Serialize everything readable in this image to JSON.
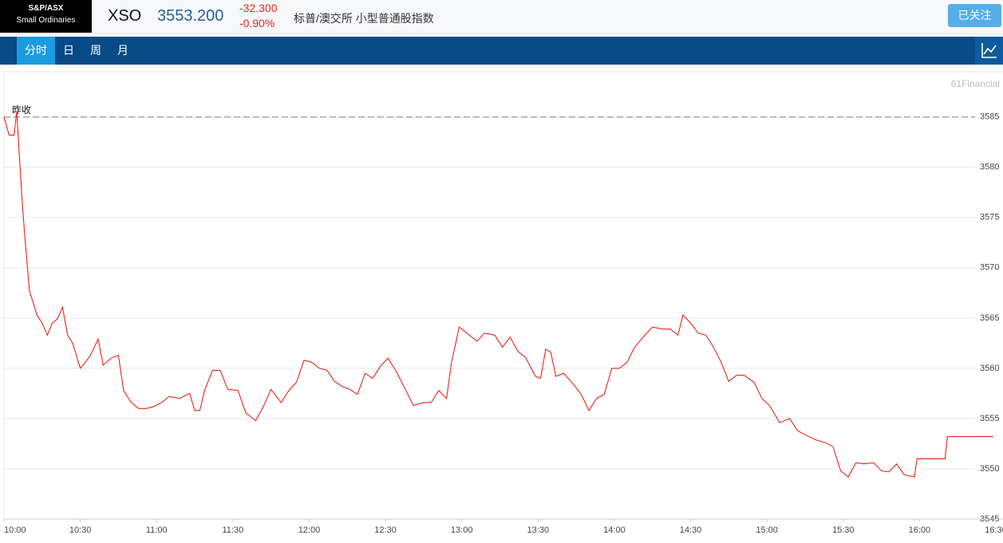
{
  "header": {
    "logo_line1": "S&P/ASX",
    "logo_line2": "Small Ordinaries",
    "symbol": "XSO",
    "price": "3553.200",
    "change": "-32.300",
    "change_pct": "-0.90%",
    "name": "标普/澳交所 小型普通股指数",
    "follow_button": "已关注"
  },
  "tabs": [
    "分时",
    "日",
    "周",
    "月"
  ],
  "chart_data": {
    "type": "line",
    "watermark": "61Financial",
    "color": "#e0261b",
    "reference_line": {
      "label": "昨收",
      "value": 3585
    },
    "x": [
      "10:00",
      "10:02",
      "10:04",
      "10:05",
      "10:07",
      "10:08",
      "10:10",
      "10:13",
      "10:15",
      "10:17",
      "10:19",
      "10:21",
      "10:23",
      "10:25",
      "10:27",
      "10:30",
      "10:32",
      "10:34",
      "10:37",
      "10:39",
      "10:42",
      "10:45",
      "10:47",
      "10:50",
      "10:53",
      "10:56",
      "10:59",
      "11:02",
      "11:05",
      "11:09",
      "11:13",
      "11:15",
      "11:17",
      "11:19",
      "11:22",
      "11:25",
      "11:28",
      "11:32",
      "11:35",
      "11:39",
      "11:42",
      "11:45",
      "11:49",
      "11:52",
      "11:55",
      "11:58",
      "12:01",
      "12:04",
      "12:07",
      "12:10",
      "12:13",
      "12:16",
      "12:19",
      "12:22",
      "12:25",
      "12:28",
      "12:31",
      "12:34",
      "12:38",
      "12:41",
      "12:45",
      "12:48",
      "12:51",
      "12:54",
      "12:56",
      "12:59",
      "13:02",
      "13:06",
      "13:09",
      "13:13",
      "13:16",
      "13:19",
      "13:22",
      "13:25",
      "13:29",
      "13:31",
      "13:33",
      "13:35",
      "13:37",
      "13:40",
      "13:43",
      "13:47",
      "13:50",
      "13:53",
      "13:56",
      "13:59",
      "14:02",
      "14:05",
      "14:08",
      "14:12",
      "14:15",
      "14:19",
      "14:22",
      "14:25",
      "14:27",
      "14:30",
      "14:33",
      "14:36",
      "14:39",
      "14:42",
      "14:45",
      "14:48",
      "14:51",
      "14:55",
      "14:58",
      "15:01",
      "15:05",
      "15:09",
      "15:12",
      "15:15",
      "15:19",
      "15:23",
      "15:26",
      "15:29",
      "15:32",
      "15:35",
      "15:38",
      "15:42",
      "15:45",
      "15:48",
      "15:51",
      "15:54",
      "15:58",
      "15:59",
      "16:10",
      "16:11",
      "16:29"
    ],
    "values": [
      3585,
      3583.2,
      3583.2,
      3585.6,
      3577.2,
      3573.7,
      3567.7,
      3565.3,
      3564.5,
      3563.3,
      3564.5,
      3564.9,
      3566.1,
      3563.3,
      3562.5,
      3560.0,
      3560.6,
      3561.3,
      3562.9,
      3560.3,
      3561.0,
      3561.3,
      3557.8,
      3556.6,
      3556.0,
      3556.0,
      3556.2,
      3556.6,
      3557.2,
      3557.0,
      3557.5,
      3555.8,
      3555.8,
      3557.9,
      3559.8,
      3559.8,
      3557.9,
      3557.8,
      3555.6,
      3554.8,
      3556.2,
      3557.9,
      3556.6,
      3557.8,
      3558.6,
      3560.8,
      3560.6,
      3560.0,
      3559.8,
      3558.7,
      3558.2,
      3557.9,
      3557.4,
      3559.5,
      3559.0,
      3560.2,
      3561.0,
      3559.8,
      3557.8,
      3556.3,
      3556.6,
      3556.6,
      3557.8,
      3557.0,
      3560.6,
      3564.1,
      3563.5,
      3562.7,
      3563.5,
      3563.3,
      3562.1,
      3563.1,
      3561.7,
      3561.1,
      3559.2,
      3559.0,
      3561.9,
      3561.6,
      3559.2,
      3559.5,
      3558.7,
      3557.4,
      3555.8,
      3557.0,
      3557.4,
      3560.0,
      3560.0,
      3560.6,
      3562.1,
      3563.3,
      3564.1,
      3563.9,
      3563.9,
      3563.3,
      3565.3,
      3564.5,
      3563.5,
      3563.3,
      3562.1,
      3560.6,
      3558.7,
      3559.3,
      3559.3,
      3558.6,
      3557.0,
      3556.3,
      3554.6,
      3555.0,
      3553.8,
      3553.4,
      3552.9,
      3552.6,
      3552.2,
      3549.8,
      3549.2,
      3550.6,
      3550.5,
      3550.6,
      3549.8,
      3549.7,
      3550.5,
      3549.4,
      3549.2,
      3551.0,
      3551.0,
      3553.2,
      3553.2
    ],
    "xlim": [
      "10:00",
      "16:30"
    ],
    "xticks": [
      "10:00",
      "10:30",
      "11:00",
      "11:30",
      "12:00",
      "12:30",
      "13:00",
      "13:30",
      "14:00",
      "14:30",
      "15:00",
      "15:30",
      "16:00",
      "16:30"
    ],
    "ylim": [
      3545,
      3589.5
    ],
    "yticks": [
      3545,
      3550,
      3555,
      3560,
      3565,
      3570,
      3575,
      3580,
      3585
    ],
    "grid": true
  }
}
